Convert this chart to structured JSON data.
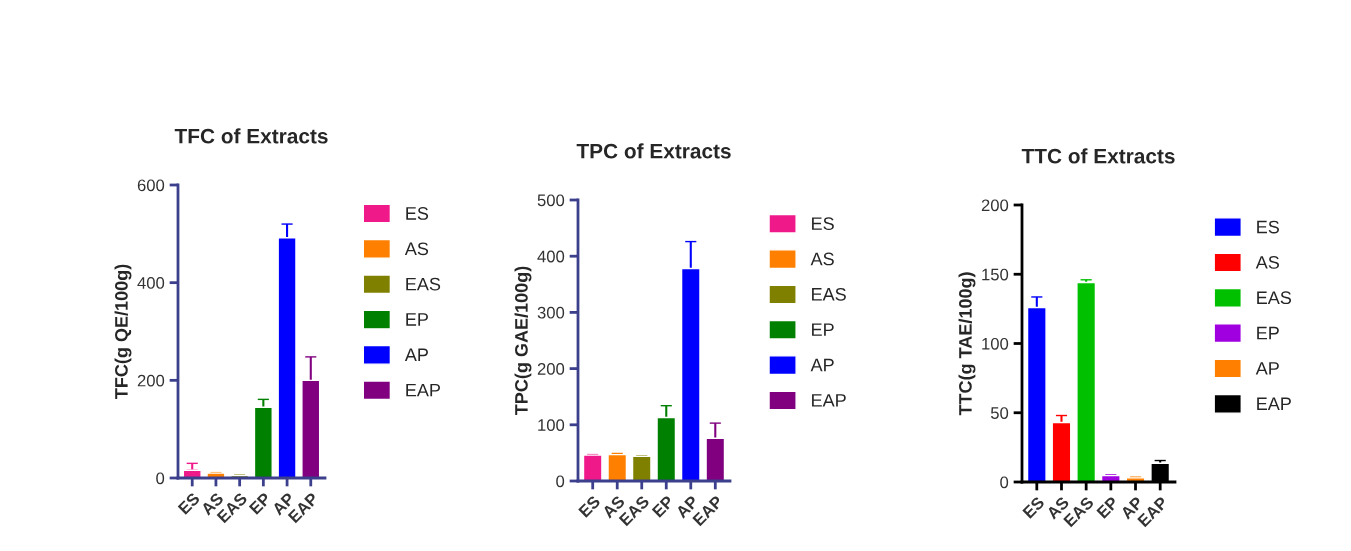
{
  "chart_data": [
    {
      "type": "bar",
      "title": "TFC of Extracts",
      "ylabel": "TFC(g QE/100g)",
      "categories": [
        "ES",
        "AS",
        "EAS",
        "EP",
        "AP",
        "EAP"
      ],
      "ylim": [
        0,
        600
      ],
      "yticks": [
        0,
        200,
        400,
        600
      ],
      "legend": "right",
      "grid": false,
      "series": [
        {
          "name": "ES",
          "color": "#f0198a",
          "values": [
            16,
            null,
            null,
            null,
            null,
            null
          ],
          "errors": [
            [
              16,
              30
            ],
            null,
            null,
            null,
            null,
            null
          ]
        },
        {
          "name": "AS",
          "color": "#ff8000",
          "values": [
            null,
            10,
            null,
            null,
            null,
            null
          ],
          "errors": [
            null,
            1,
            null,
            null,
            null,
            null
          ]
        },
        {
          "name": "EAS",
          "color": "#808000",
          "values": [
            null,
            null,
            5,
            null,
            null,
            null
          ],
          "errors": [
            null,
            null,
            1,
            null,
            null,
            null
          ]
        },
        {
          "name": "EP",
          "color": "#008000",
          "values": [
            null,
            null,
            null,
            145,
            null,
            null
          ],
          "errors": [
            null,
            null,
            null,
            16,
            null,
            null
          ]
        },
        {
          "name": "AP",
          "color": "#0000ff",
          "values": [
            null,
            null,
            null,
            null,
            492,
            null
          ],
          "errors": [
            null,
            null,
            null,
            null,
            28,
            null
          ]
        },
        {
          "name": "EAP",
          "color": "#800080",
          "values": [
            null,
            null,
            null,
            null,
            null,
            200
          ],
          "errors": [
            null,
            null,
            null,
            null,
            null,
            48
          ]
        }
      ]
    },
    {
      "type": "bar",
      "title": "TPC of Extracts",
      "ylabel": "TPC(g GAE/100g)",
      "categories": [
        "ES",
        "AS",
        "EAS",
        "EP",
        "AP",
        "EAP"
      ],
      "ylim": [
        0,
        500
      ],
      "yticks": [
        0,
        100,
        200,
        300,
        400,
        500
      ],
      "legend": "right",
      "grid": false,
      "series": [
        {
          "name": "ES",
          "color": "#f0198a",
          "values": [
            46,
            null,
            null,
            null,
            null,
            null
          ],
          "errors": [
            1,
            null,
            null,
            null,
            null,
            null
          ]
        },
        {
          "name": "AS",
          "color": "#ff8000",
          "values": [
            null,
            47,
            null,
            null,
            null,
            null
          ],
          "errors": [
            null,
            2,
            null,
            null,
            null,
            null
          ]
        },
        {
          "name": "EAS",
          "color": "#808000",
          "values": [
            null,
            null,
            44,
            null,
            null,
            null
          ],
          "errors": [
            null,
            null,
            1,
            null,
            null,
            null
          ]
        },
        {
          "name": "EP",
          "color": "#008000",
          "values": [
            null,
            null,
            null,
            113,
            null,
            null
          ],
          "errors": [
            null,
            null,
            null,
            21,
            null,
            null
          ]
        },
        {
          "name": "AP",
          "color": "#0000ff",
          "values": [
            null,
            null,
            null,
            null,
            378,
            null
          ],
          "errors": [
            null,
            null,
            null,
            null,
            48,
            null
          ]
        },
        {
          "name": "EAP",
          "color": "#800080",
          "values": [
            null,
            null,
            null,
            null,
            null,
            76
          ],
          "errors": [
            null,
            null,
            null,
            null,
            null,
            27
          ]
        }
      ]
    },
    {
      "type": "bar",
      "title": "TTC of Extracts",
      "ylabel": "TTC(g TAE/100g)",
      "categories": [
        "ES",
        "AS",
        "EAS",
        "EP",
        "AP",
        "EAP"
      ],
      "ylim": [
        0,
        200
      ],
      "yticks": [
        0,
        50,
        100,
        150,
        200
      ],
      "legend": "right",
      "grid": false,
      "series": [
        {
          "name": "ES",
          "color": "#0000ff",
          "values": [
            126,
            null,
            null,
            null,
            null,
            null
          ],
          "errors": [
            7.6,
            null,
            null,
            null,
            null,
            null
          ]
        },
        {
          "name": "AS",
          "color": "#ff0000",
          "values": [
            null,
            43,
            null,
            null,
            null,
            null
          ],
          "errors": [
            null,
            5,
            null,
            null,
            null,
            null
          ]
        },
        {
          "name": "EAS",
          "color": "#00c000",
          "values": [
            null,
            null,
            144,
            null,
            null,
            null
          ],
          "errors": [
            null,
            null,
            2,
            null,
            null,
            null
          ]
        },
        {
          "name": "EP",
          "color": "#a000e0",
          "values": [
            null,
            null,
            null,
            4.6,
            null,
            null
          ],
          "errors": [
            null,
            null,
            null,
            0.5,
            null,
            null
          ]
        },
        {
          "name": "AP",
          "color": "#ff8000",
          "values": [
            null,
            null,
            null,
            null,
            3,
            null
          ],
          "errors": [
            null,
            null,
            null,
            null,
            0.5,
            null
          ]
        },
        {
          "name": "EAP",
          "color": "#000000",
          "values": [
            null,
            null,
            null,
            null,
            null,
            13.5
          ],
          "errors": [
            null,
            null,
            null,
            null,
            null,
            2
          ]
        }
      ]
    }
  ]
}
